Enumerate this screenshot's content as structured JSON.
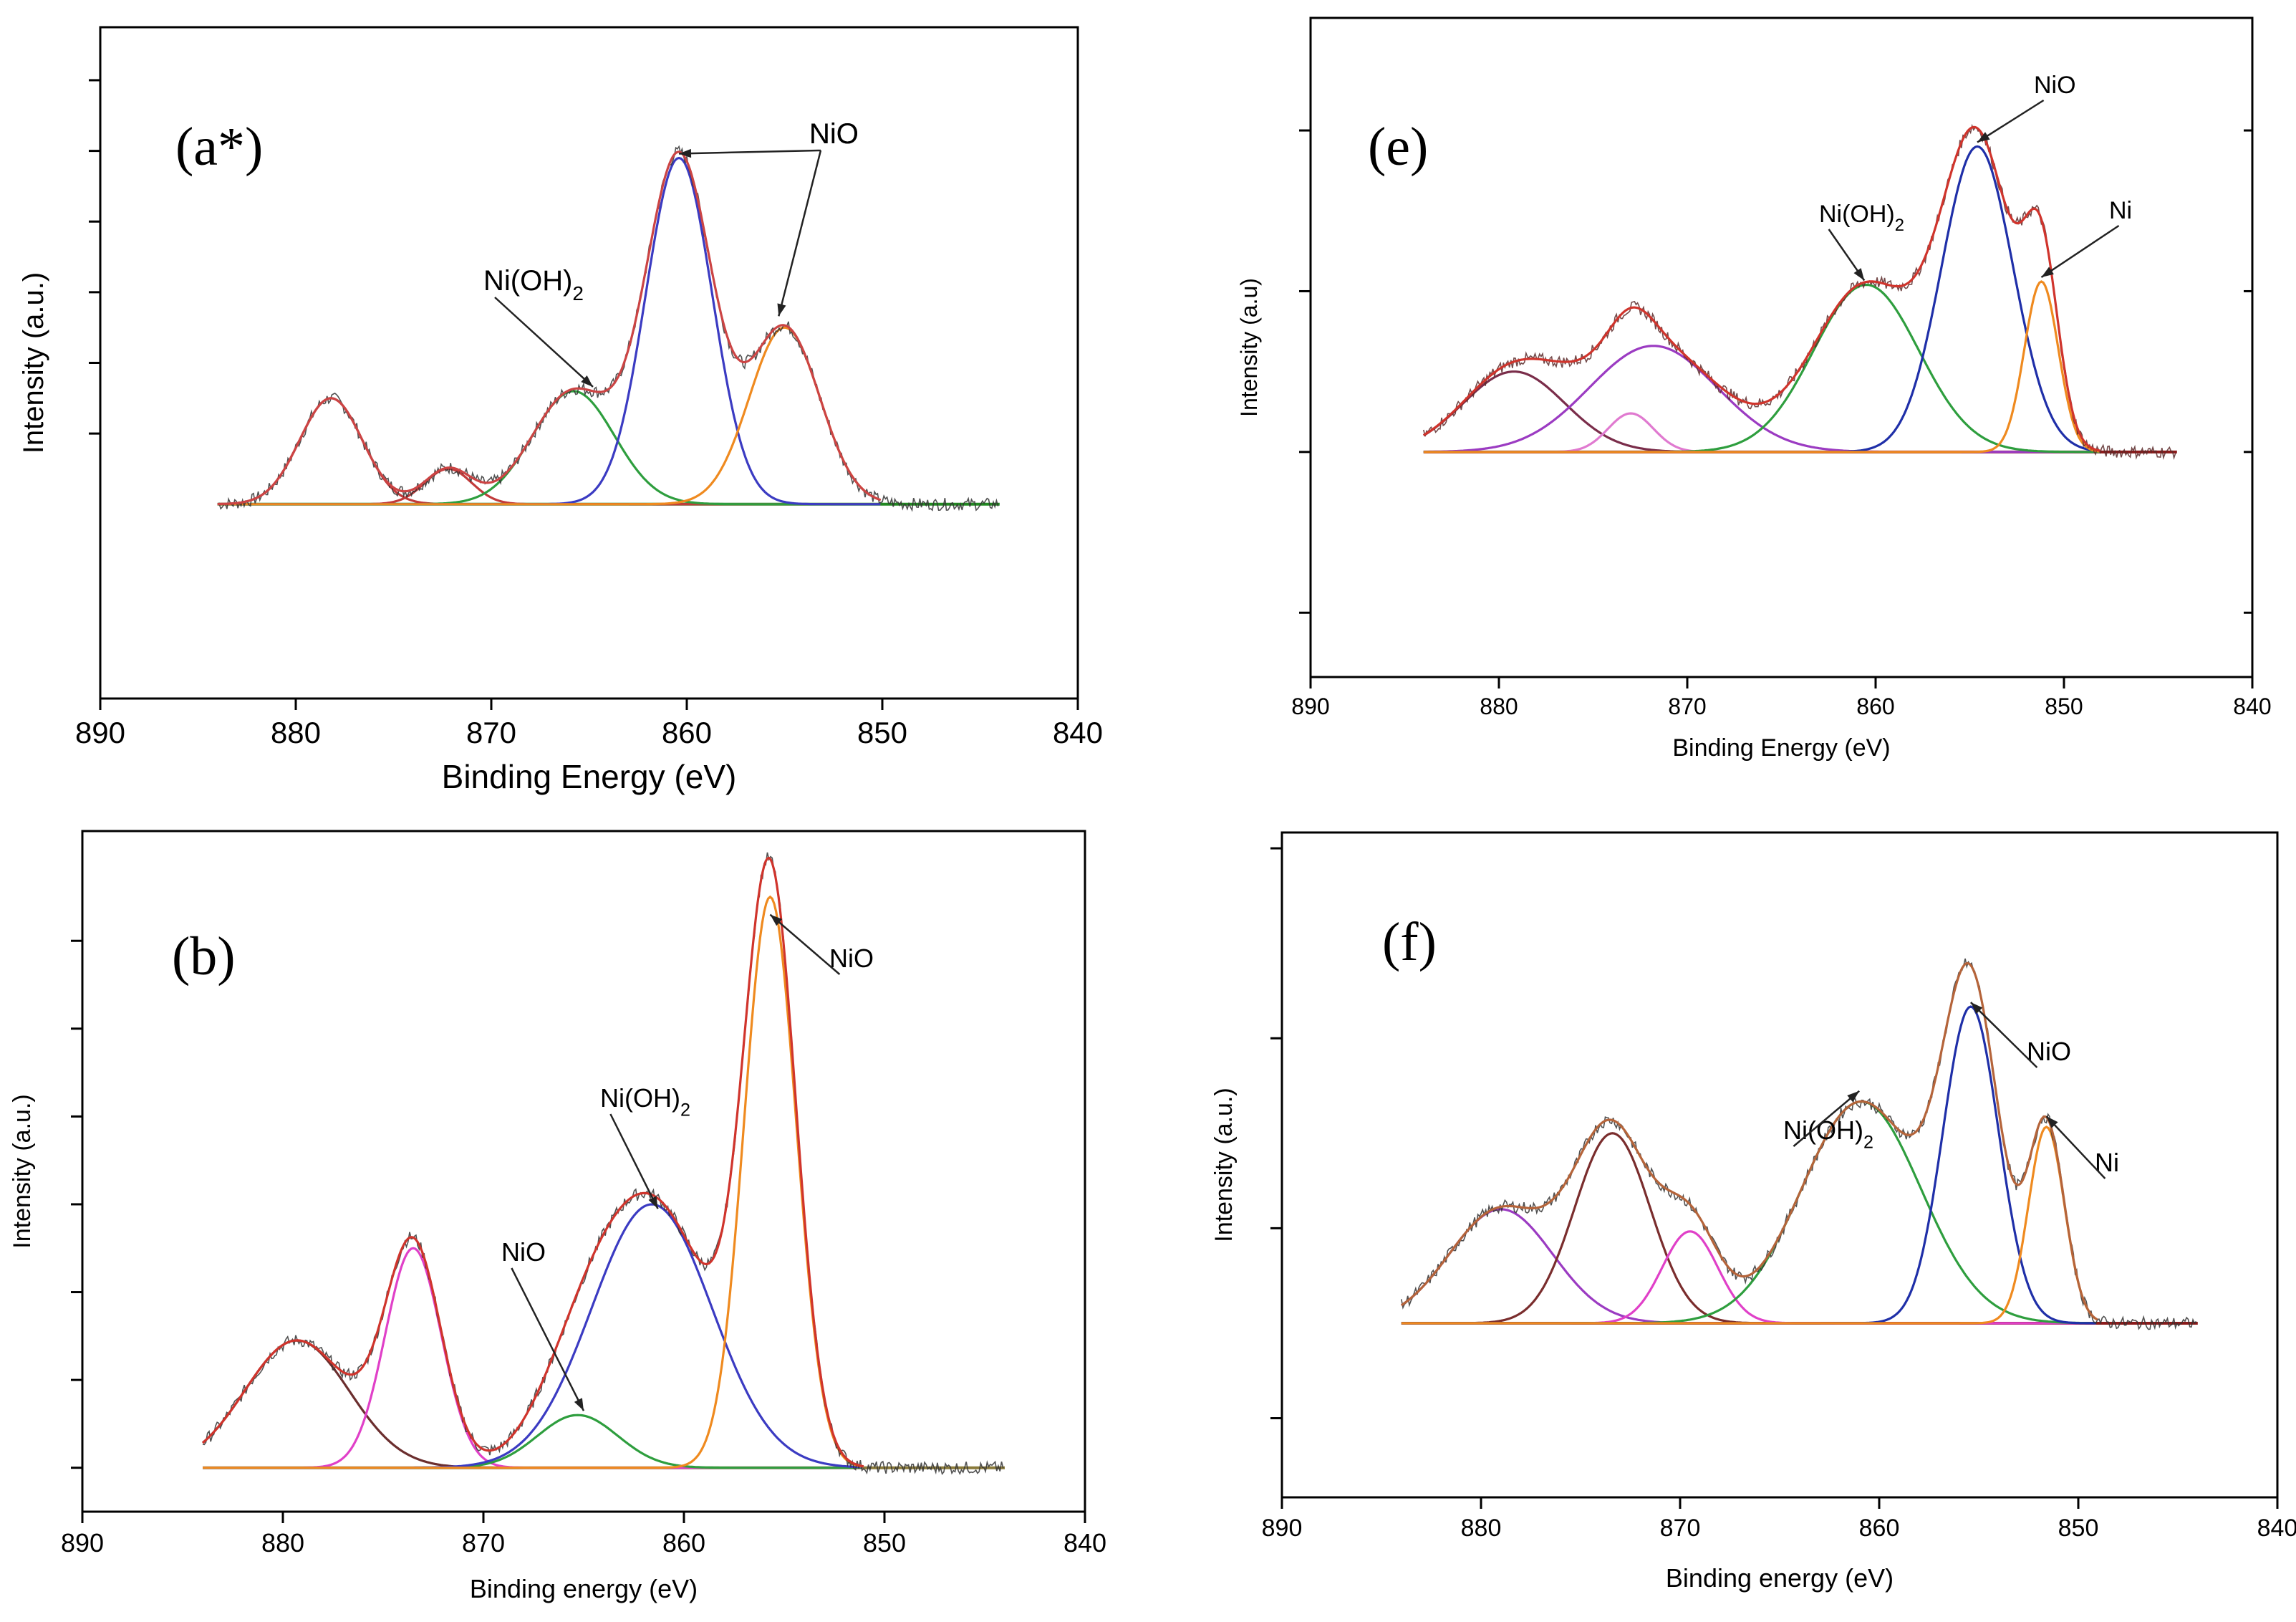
{
  "chart_data": [
    {
      "panel": "(a*)",
      "type": "line",
      "xlabel": "Binding Energy (eV)",
      "ylabel": "Intensity (a.u.)",
      "xlim": [
        890,
        840
      ],
      "xticks": [
        890,
        880,
        870,
        860,
        850,
        840
      ],
      "data_range": [
        884,
        844
      ],
      "baseline_end": 844,
      "fit_end": 850,
      "colors": {
        "data": "#333333",
        "envelope": "#cc4444",
        "baseline": "#228822"
      },
      "peaks": [
        {
          "center": 878.2,
          "amplitude": 0.3,
          "width": 1.6,
          "color": "#c23b3b"
        },
        {
          "center": 872.2,
          "amplitude": 0.1,
          "width": 1.2,
          "color": "#c23b3b"
        },
        {
          "center": 865.8,
          "amplitude": 0.32,
          "width": 2.1,
          "color": "#2e9e3e"
        },
        {
          "center": 860.4,
          "amplitude": 0.98,
          "width": 1.7,
          "color": "#3b3bc2"
        },
        {
          "center": 855.0,
          "amplitude": 0.5,
          "width": 1.8,
          "color": "#ef8a1f"
        }
      ],
      "annotations": [
        {
          "text": "NiO",
          "target_x": 860.4,
          "target_y": 0.98
        },
        {
          "text": "NiO",
          "target_x": 855.3,
          "target_y": 0.52
        },
        {
          "text": "Ni(OH)",
          "sub": "2",
          "target_x": 864.8,
          "target_y": 0.32
        }
      ]
    },
    {
      "panel": "(b)",
      "type": "line",
      "xlabel": "Binding energy (eV)",
      "ylabel": "Intensity (a.u.)",
      "xlim": [
        890,
        840
      ],
      "xticks": [
        890,
        880,
        870,
        860,
        850,
        840
      ],
      "data_range": [
        884,
        844
      ],
      "baseline_end": 844,
      "fit_end": 851,
      "colors": {
        "data": "#333333",
        "envelope": "#d0342c",
        "baseline": "#8a7a3a"
      },
      "peaks": [
        {
          "center": 879.3,
          "amplitude": 0.29,
          "width": 2.6,
          "color": "#6b2e2e"
        },
        {
          "center": 873.5,
          "amplitude": 0.5,
          "width": 1.4,
          "color": "#e040c8"
        },
        {
          "center": 865.3,
          "amplitude": 0.12,
          "width": 2.0,
          "color": "#2e9e3e"
        },
        {
          "center": 861.6,
          "amplitude": 0.6,
          "width": 3.0,
          "color": "#3b3bc2"
        },
        {
          "center": 855.7,
          "amplitude": 1.3,
          "width": 1.3,
          "color": "#ef8a1f"
        }
      ],
      "annotations": [
        {
          "text": "NiO",
          "target_x": 855.7,
          "target_y": 1.25
        },
        {
          "text": "Ni(OH)",
          "sub": "2",
          "target_x": 861.3,
          "target_y": 0.58
        },
        {
          "text": "NiO",
          "target_x": 865.0,
          "target_y": 0.12
        }
      ]
    },
    {
      "panel": "(e)",
      "type": "line",
      "xlabel": "Binding Energy (eV)",
      "ylabel": "Intensity (a.u)",
      "xlim": [
        890,
        840
      ],
      "xticks": [
        890,
        880,
        870,
        860,
        850,
        840
      ],
      "data_range": [
        884,
        844
      ],
      "baseline_end": 844,
      "fit_end": 848,
      "colors": {
        "data": "#5a2a2a",
        "envelope": "#d0342c",
        "baseline": "#8b1a1a"
      },
      "peaks": [
        {
          "center": 879.2,
          "amplitude": 0.25,
          "width": 2.7,
          "color": "#7a2d4a"
        },
        {
          "center": 873.0,
          "amplitude": 0.12,
          "width": 1.2,
          "color": "#e07ad0"
        },
        {
          "center": 871.8,
          "amplitude": 0.33,
          "width": 3.4,
          "color": "#9b3bc2"
        },
        {
          "center": 860.5,
          "amplitude": 0.52,
          "width": 2.8,
          "color": "#2e9e3e"
        },
        {
          "center": 854.6,
          "amplitude": 0.95,
          "width": 1.9,
          "color": "#1f2fa8"
        },
        {
          "center": 851.2,
          "amplitude": 0.53,
          "width": 0.9,
          "color": "#ef8a1f"
        }
      ],
      "annotations": [
        {
          "text": "NiO",
          "target_x": 854.6,
          "target_y": 0.95
        },
        {
          "text": "Ni(OH)",
          "sub": "2",
          "target_x": 860.6,
          "target_y": 0.52
        },
        {
          "text": "Ni",
          "target_x": 851.2,
          "target_y": 0.53
        }
      ]
    },
    {
      "panel": "(f)",
      "type": "line",
      "xlabel": "Binding energy (eV)",
      "ylabel": "Intensity (a.u.)",
      "xlim": [
        890,
        840
      ],
      "xticks": [
        890,
        880,
        870,
        860,
        850,
        840
      ],
      "data_range": [
        884,
        844
      ],
      "baseline_end": 844,
      "fit_end": 849,
      "colors": {
        "data": "#333333",
        "envelope": "#b5643a",
        "baseline": "#8b1a1a"
      },
      "peaks": [
        {
          "center": 879.0,
          "amplitude": 0.36,
          "width": 2.6,
          "color": "#9b3bc2"
        },
        {
          "center": 873.4,
          "amplitude": 0.6,
          "width": 1.9,
          "color": "#7a2d2d"
        },
        {
          "center": 869.5,
          "amplitude": 0.29,
          "width": 1.4,
          "color": "#e040c8"
        },
        {
          "center": 860.9,
          "amplitude": 0.7,
          "width": 3.0,
          "color": "#2e9e3e"
        },
        {
          "center": 855.4,
          "amplitude": 1.0,
          "width": 1.4,
          "color": "#1f2fa8"
        },
        {
          "center": 851.6,
          "amplitude": 0.62,
          "width": 0.9,
          "color": "#ef8a1f"
        }
      ],
      "annotations": [
        {
          "text": "NiO",
          "target_x": 855.4,
          "target_y": 1.0
        },
        {
          "text": "Ni(OH)",
          "sub": "2",
          "target_x": 861.0,
          "target_y": 0.72
        },
        {
          "text": "Ni",
          "target_x": 851.6,
          "target_y": 0.64
        }
      ]
    }
  ]
}
